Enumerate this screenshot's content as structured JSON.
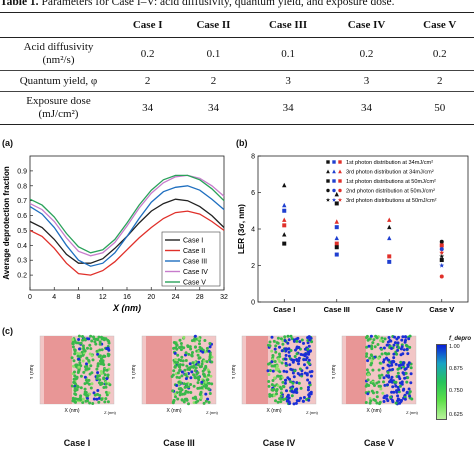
{
  "caption": {
    "label": "Table 1.",
    "text": " Parameters for Case I–V: acid diffusivity, quantum yield, and exposure dose."
  },
  "table": {
    "headers": [
      "",
      "Case I",
      "Case II",
      "Case III",
      "Case IV",
      "Case V"
    ],
    "rows": [
      {
        "label_line1": "Acid diffusivity",
        "label_line2": "(nm²/s)",
        "values": [
          "0.2",
          "0.1",
          "0.1",
          "0.2",
          "0.2"
        ]
      },
      {
        "label_line1": "Quantum yield, φ",
        "label_line2": "",
        "values": [
          "2",
          "2",
          "3",
          "3",
          "2"
        ]
      },
      {
        "label_line1": "Exposure dose",
        "label_line2": "(mJ/cm²)",
        "values": [
          "34",
          "34",
          "34",
          "34",
          "50"
        ]
      }
    ]
  },
  "panel_a": {
    "label": "(a)"
  },
  "panel_b": {
    "label": "(b)"
  },
  "panel_c": {
    "label": "(c)"
  },
  "chart_data": [
    {
      "type": "line",
      "xlabel": "X (nm)",
      "ylabel": "Average deprotection fraction",
      "xlim": [
        0,
        32
      ],
      "ylim": [
        0.1,
        1.0
      ],
      "x_ticks": [
        "0",
        "4",
        "8",
        "12",
        "16",
        "20",
        "24",
        "28",
        "32"
      ],
      "y_ticks": [
        "0.2",
        "0.3",
        "0.4",
        "0.5",
        "0.6",
        "0.7",
        "0.8",
        "0.9"
      ],
      "x": [
        0,
        2,
        4,
        6,
        8,
        10,
        12,
        14,
        16,
        18,
        20,
        22,
        24,
        26,
        28,
        30,
        32
      ],
      "legend_position": "bottom-right",
      "series": [
        {
          "name": "Case I",
          "color": "#222222",
          "values": [
            0.56,
            0.52,
            0.44,
            0.34,
            0.28,
            0.28,
            0.31,
            0.38,
            0.46,
            0.55,
            0.63,
            0.68,
            0.71,
            0.7,
            0.66,
            0.6,
            0.52
          ]
        },
        {
          "name": "Case II",
          "color": "#e0302a",
          "values": [
            0.5,
            0.46,
            0.38,
            0.28,
            0.21,
            0.2,
            0.23,
            0.29,
            0.37,
            0.45,
            0.52,
            0.58,
            0.62,
            0.63,
            0.61,
            0.56,
            0.5
          ]
        },
        {
          "name": "Case III",
          "color": "#1f6fc0",
          "values": [
            0.66,
            0.61,
            0.52,
            0.4,
            0.3,
            0.26,
            0.28,
            0.35,
            0.46,
            0.58,
            0.69,
            0.76,
            0.79,
            0.8,
            0.77,
            0.71,
            0.64
          ]
        },
        {
          "name": "Case IV",
          "color": "#c77ccc",
          "values": [
            0.68,
            0.64,
            0.56,
            0.45,
            0.36,
            0.33,
            0.35,
            0.42,
            0.53,
            0.65,
            0.75,
            0.82,
            0.86,
            0.87,
            0.85,
            0.8,
            0.73
          ]
        },
        {
          "name": "Case V",
          "color": "#2aa15a",
          "values": [
            0.71,
            0.67,
            0.59,
            0.48,
            0.39,
            0.35,
            0.37,
            0.44,
            0.55,
            0.67,
            0.77,
            0.84,
            0.87,
            0.87,
            0.84,
            0.78,
            0.7
          ]
        }
      ]
    },
    {
      "type": "scatter",
      "ylabel": "LER (3σ, nm)",
      "ylim": [
        0,
        8
      ],
      "y_ticks": [
        "0",
        "2",
        "4",
        "6",
        "8"
      ],
      "categories": [
        "Case I",
        "Case III",
        "Case IV",
        "Case V"
      ],
      "legend_position": "top-right",
      "legend": [
        {
          "label": "1st photon distribution at 34mJ/cm²",
          "marker": "square",
          "colors": [
            "#111111",
            "#1f3fd0",
            "#e0302a"
          ]
        },
        {
          "label": "3rd photon distribution at 34mJ/cm²",
          "marker": "triangle",
          "colors": [
            "#111111",
            "#1f3fd0",
            "#e0302a"
          ]
        },
        {
          "label": "1st photon distributions at 50mJ/cm²",
          "marker": "square",
          "colors": [
            "#111111",
            "#1f3fd0",
            "#e0302a"
          ]
        },
        {
          "label": "2nd photon distribution at 50mJ/cm²",
          "marker": "circle",
          "colors": [
            "#111111",
            "#1f3fd0",
            "#e0302a"
          ]
        },
        {
          "label": "3rd photon distributions at 50mJ/cm²",
          "marker": "star",
          "colors": [
            "#111111",
            "#1f3fd0",
            "#e0302a"
          ]
        }
      ],
      "points": [
        {
          "category": "Case I",
          "marker": "triangle",
          "color": "#111111",
          "value": 6.4
        },
        {
          "category": "Case I",
          "marker": "triangle",
          "color": "#1f3fd0",
          "value": 5.3
        },
        {
          "category": "Case I",
          "marker": "square",
          "color": "#1f3fd0",
          "value": 5.0
        },
        {
          "category": "Case I",
          "marker": "triangle",
          "color": "#e0302a",
          "value": 4.5
        },
        {
          "category": "Case I",
          "marker": "square",
          "color": "#e0302a",
          "value": 4.2
        },
        {
          "category": "Case I",
          "marker": "triangle",
          "color": "#111111",
          "value": 3.7
        },
        {
          "category": "Case I",
          "marker": "square",
          "color": "#111111",
          "value": 3.2
        },
        {
          "category": "Case III",
          "marker": "triangle",
          "color": "#111111",
          "value": 5.9
        },
        {
          "category": "Case III",
          "marker": "square",
          "color": "#111111",
          "value": 5.4
        },
        {
          "category": "Case III",
          "marker": "triangle",
          "color": "#e0302a",
          "value": 4.4
        },
        {
          "category": "Case III",
          "marker": "square",
          "color": "#1f3fd0",
          "value": 4.1
        },
        {
          "category": "Case III",
          "marker": "triangle",
          "color": "#1f3fd0",
          "value": 3.5
        },
        {
          "category": "Case III",
          "marker": "square",
          "color": "#e0302a",
          "value": 3.2
        },
        {
          "category": "Case III",
          "marker": "square",
          "color": "#111111",
          "value": 3.0
        },
        {
          "category": "Case III",
          "marker": "square",
          "color": "#1f3fd0",
          "value": 2.6
        },
        {
          "category": "Case IV",
          "marker": "triangle",
          "color": "#e0302a",
          "value": 4.5
        },
        {
          "category": "Case IV",
          "marker": "triangle",
          "color": "#111111",
          "value": 4.1
        },
        {
          "category": "Case IV",
          "marker": "triangle",
          "color": "#1f3fd0",
          "value": 3.5
        },
        {
          "category": "Case IV",
          "marker": "square",
          "color": "#e0302a",
          "value": 2.5
        },
        {
          "category": "Case IV",
          "marker": "square",
          "color": "#1f3fd0",
          "value": 2.2
        },
        {
          "category": "Case V",
          "marker": "circle",
          "color": "#111111",
          "value": 3.3
        },
        {
          "category": "Case V",
          "marker": "square",
          "color": "#e0302a",
          "value": 3.1
        },
        {
          "category": "Case V",
          "marker": "circle",
          "color": "#1f3fd0",
          "value": 2.9
        },
        {
          "category": "Case V",
          "marker": "star",
          "color": "#e0302a",
          "value": 2.7
        },
        {
          "category": "Case V",
          "marker": "star",
          "color": "#111111",
          "value": 2.5
        },
        {
          "category": "Case V",
          "marker": "square",
          "color": "#111111",
          "value": 2.3
        },
        {
          "category": "Case V",
          "marker": "star",
          "color": "#1f3fd0",
          "value": 2.0
        },
        {
          "category": "Case V",
          "marker": "circle",
          "color": "#e0302a",
          "value": 1.4
        }
      ]
    }
  ],
  "panel_c_data": {
    "images": [
      {
        "caption": "Case I",
        "x_axis": "X (nm)",
        "y_axis": "Y (nm)",
        "z_axis": "Z (nm)"
      },
      {
        "caption": "Case III",
        "x_axis": "X (nm)",
        "y_axis": "Y (nm)",
        "z_axis": "Z (nm)"
      },
      {
        "caption": "Case IV",
        "x_axis": "X (nm)",
        "y_axis": "Y (nm)",
        "z_axis": "Z (nm)"
      },
      {
        "caption": "Case V",
        "x_axis": "X (nm)",
        "y_axis": "Y (nm)",
        "z_axis": "Z (nm)"
      }
    ],
    "colorbar": {
      "title": "f_depro",
      "ticks": [
        "1.00",
        "0.875",
        "0.750",
        "0.625"
      ]
    }
  }
}
